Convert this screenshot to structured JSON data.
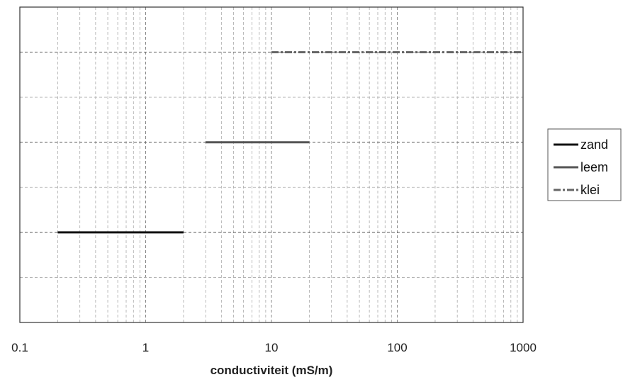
{
  "chart_data": {
    "type": "line",
    "title": "",
    "xlabel": "conductiviteit (mS/m)",
    "ylabel": "",
    "x_scale": "log",
    "xlim": [
      0.1,
      1000
    ],
    "ylim": [
      0,
      7
    ],
    "x_ticks": [
      "0.1",
      "1",
      "10",
      "100",
      "1000"
    ],
    "grid": true,
    "legend_position": "right",
    "series": [
      {
        "name": "zand",
        "color": "#111111",
        "dash": "solid",
        "x": [
          0.2,
          2
        ],
        "y": [
          2,
          2
        ]
      },
      {
        "name": "leem",
        "color": "#555555",
        "dash": "solid",
        "x": [
          3,
          20
        ],
        "y": [
          4,
          4
        ]
      },
      {
        "name": "klei",
        "color": "#666666",
        "dash": "dashdot",
        "x": [
          10,
          1000
        ],
        "y": [
          6,
          6
        ]
      }
    ]
  }
}
